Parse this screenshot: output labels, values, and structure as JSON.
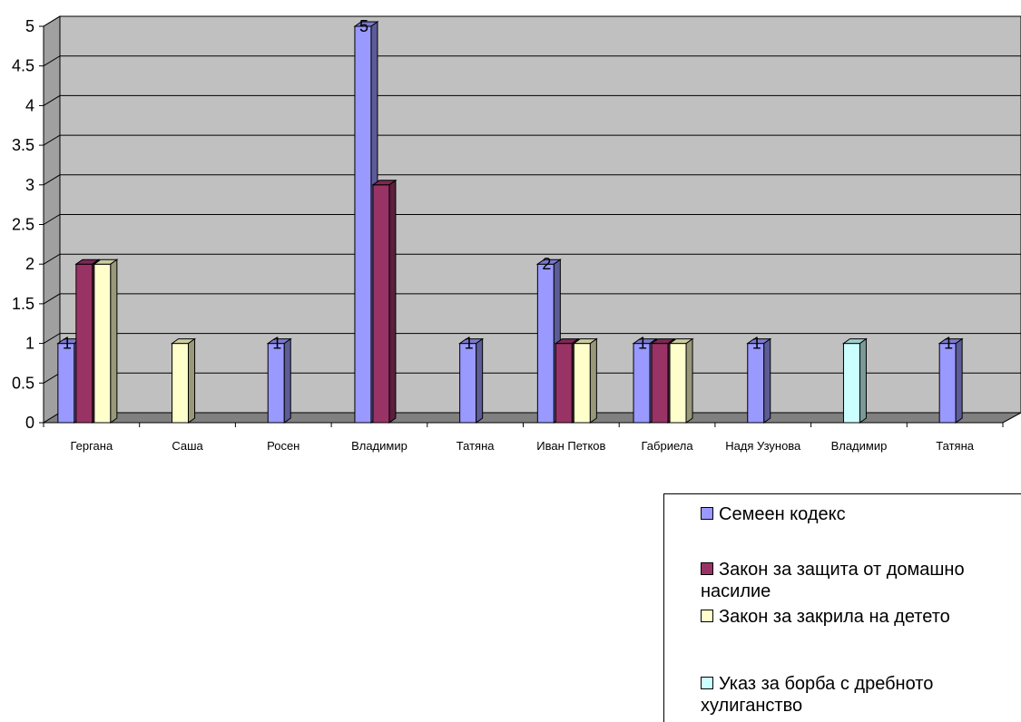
{
  "chart_data": {
    "type": "bar",
    "categories": [
      "Гергана",
      "Саша",
      "Росен",
      "Владимир",
      "Татяна",
      "Иван Петков",
      "Габриела",
      "Надя Узунова",
      "Владимир",
      "Татяна"
    ],
    "series": [
      {
        "name": "Семеен кодекс",
        "color": "#9999ff",
        "values": [
          1,
          0,
          1,
          5,
          1,
          2,
          1,
          1,
          0,
          1
        ]
      },
      {
        "name": "Закон за защита от домашно насилие",
        "color": "#993366",
        "values": [
          2,
          0,
          0,
          3,
          0,
          1,
          1,
          0,
          0,
          0
        ]
      },
      {
        "name": "Закон за закрила на детето",
        "color": "#ffffcc",
        "values": [
          2,
          1,
          0,
          0,
          0,
          1,
          1,
          0,
          0,
          0
        ]
      },
      {
        "name": "Указ за борба с дребното хулиганство",
        "color": "#ccffff",
        "values": [
          0,
          0,
          0,
          0,
          0,
          0,
          0,
          0,
          1,
          0
        ]
      }
    ],
    "data_labels": [
      {
        "category_index": 0,
        "series_index": 0,
        "text": "1"
      },
      {
        "category_index": 2,
        "series_index": 0,
        "text": "1"
      },
      {
        "category_index": 3,
        "series_index": 0,
        "text": "5"
      },
      {
        "category_index": 4,
        "series_index": 0,
        "text": "1"
      },
      {
        "category_index": 5,
        "series_index": 0,
        "text": "2"
      },
      {
        "category_index": 6,
        "series_index": 0,
        "text": "1"
      },
      {
        "category_index": 7,
        "series_index": 0,
        "text": "1"
      },
      {
        "category_index": 9,
        "series_index": 0,
        "text": "1"
      }
    ],
    "y_ticks": [
      "0",
      "0.5",
      "1",
      "1.5",
      "2",
      "2.5",
      "3",
      "3.5",
      "4",
      "4.5",
      "5"
    ],
    "ylim": [
      0,
      5
    ],
    "title": "",
    "xlabel": "",
    "ylabel": "",
    "grid": true,
    "legend_position": "bottom-right",
    "wall_color": "#c0c0c0",
    "floor_color": "#808080"
  },
  "legend": {
    "items": [
      {
        "label": "Семеен кодекс",
        "color": "#9999ff"
      },
      {
        "label": "Закон за защита от домашно насилие",
        "color": "#993366"
      },
      {
        "label": "Закон за закрила на детето",
        "color": "#ffffcc"
      },
      {
        "label": "Указ за борба с дребното хулиганство",
        "color": "#ccffff"
      }
    ]
  }
}
